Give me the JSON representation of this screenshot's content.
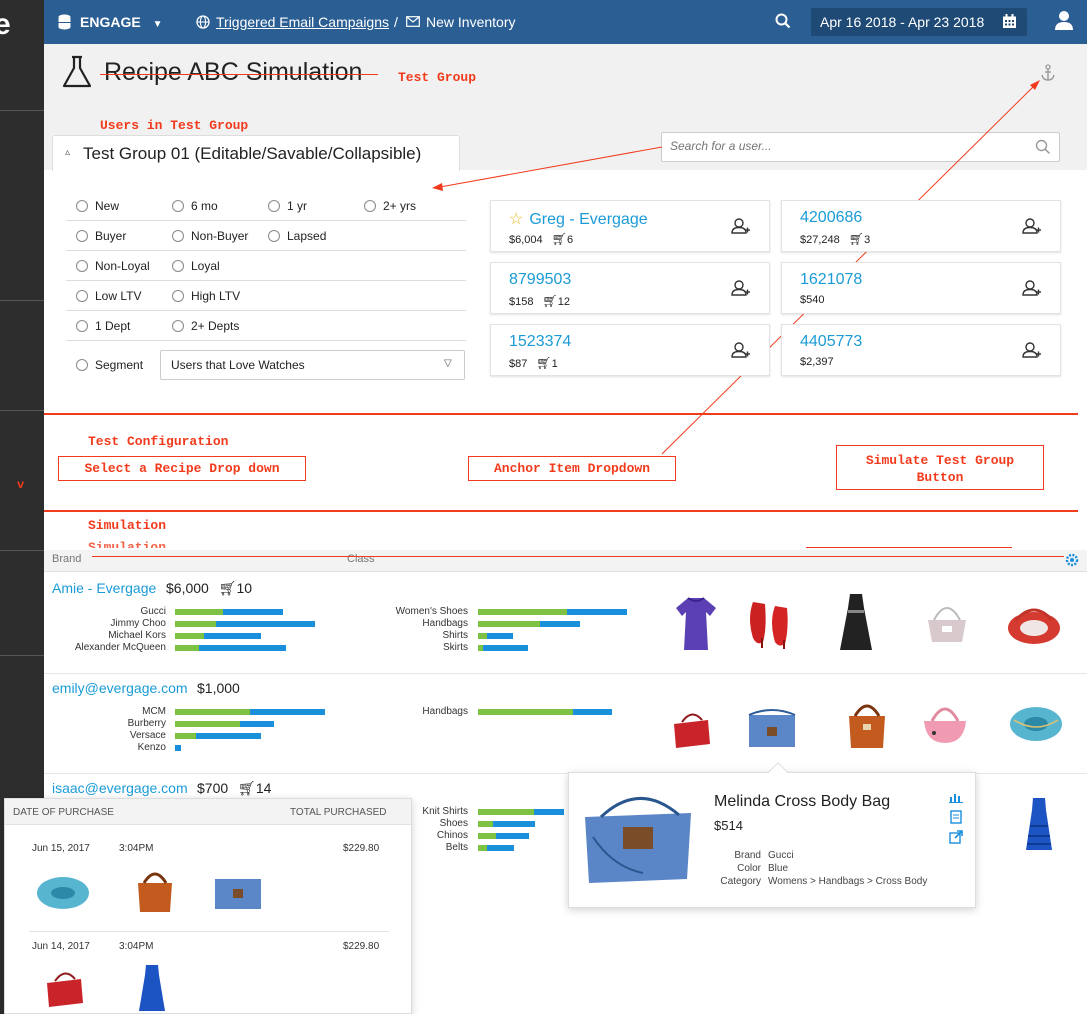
{
  "left_edge": {
    "logo_letter": "e",
    "marker": "v"
  },
  "topbar": {
    "product": "ENGAGE",
    "breadcrumb_link": "Triggered Email Campaigns",
    "breadcrumb_sep": "/",
    "breadcrumb_current": "New Inventory",
    "date_range": "Apr 16 2018 - Apr 23 2018",
    "color": "#2b5f94"
  },
  "page": {
    "title": "Recipe ABC Simulation"
  },
  "annotations": {
    "test_group": "Test Group",
    "users_in_test_group": "Users in Test Group",
    "test_configuration": "Test Configuration",
    "select_recipe": "Select a Recipe Drop down",
    "anchor_item": "Anchor Item Dropdown",
    "simulate_button": "Simulate Test Group Button",
    "simulation": "Simulation",
    "simulation_ghost": "Simulation"
  },
  "test_group": {
    "tab_label": "Test Group 01 (Editable/Savable/Collapsible)",
    "search_placeholder": "Search for a user...",
    "filters": [
      [
        "New",
        "6 mo",
        "1 yr",
        "2+ yrs"
      ],
      [
        "Buyer",
        "Non-Buyer",
        "Lapsed"
      ],
      [
        "Non-Loyal",
        "Loyal"
      ],
      [
        "Low LTV",
        "High LTV"
      ],
      [
        "1 Dept",
        "2+ Depts"
      ]
    ],
    "segment_label": "Segment",
    "segment_value": "Users that Love Watches",
    "users": [
      {
        "name": "Greg - Evergage",
        "amount": "$6,004",
        "count": "6",
        "starred": true
      },
      {
        "name": "4200686",
        "amount": "$27,248",
        "count": "3"
      },
      {
        "name": "8799503",
        "amount": "$158",
        "count": "12"
      },
      {
        "name": "1621078",
        "amount": "$540",
        "count": ""
      },
      {
        "name": "1523374",
        "amount": "$87",
        "count": "1"
      },
      {
        "name": "4405773",
        "amount": "$2,397",
        "count": ""
      }
    ]
  },
  "simulation": {
    "col_brand": "Brand",
    "col_class": "Class",
    "rows": [
      {
        "user": "Amie - Evergage",
        "amount": "$6,000",
        "count": "10",
        "brands": [
          {
            "name": "Gucci",
            "g": 0.32,
            "b": 0.4
          },
          {
            "name": "Jimmy Choo",
            "g": 0.27,
            "b": 0.66
          },
          {
            "name": "Michael Kors",
            "g": 0.19,
            "b": 0.38
          },
          {
            "name": "Alexander McQueen",
            "g": 0.16,
            "b": 0.58
          }
        ],
        "classes": [
          {
            "name": "Women's Shoes",
            "g": 0.59,
            "b": 0.4
          },
          {
            "name": "Handbags",
            "g": 0.41,
            "b": 0.27
          },
          {
            "name": "Shirts",
            "g": 0.06,
            "b": 0.17
          },
          {
            "name": "Skirts",
            "g": 0.03,
            "b": 0.3
          }
        ]
      },
      {
        "user": "emily@evergage.com",
        "amount": "$1,000",
        "count": "",
        "brands": [
          {
            "name": "MCM",
            "g": 0.5,
            "b": 0.5
          },
          {
            "name": "Burberry",
            "g": 0.43,
            "b": 0.23
          },
          {
            "name": "Versace",
            "g": 0.14,
            "b": 0.43
          },
          {
            "name": "Kenzo",
            "g": 0.0,
            "b": 0.04
          }
        ],
        "classes": [
          {
            "name": "Handbags",
            "g": 0.63,
            "b": 0.26
          }
        ]
      },
      {
        "user": "isaac@evergage.com",
        "amount": "$700",
        "count": "14",
        "brands": [],
        "classes": [
          {
            "name": "Knit Shirts",
            "g": 0.37,
            "b": 0.2
          },
          {
            "name": "Shoes",
            "g": 0.1,
            "b": 0.28
          },
          {
            "name": "Chinos",
            "g": 0.12,
            "b": 0.22
          },
          {
            "name": "Belts",
            "g": 0.06,
            "b": 0.18
          }
        ]
      }
    ]
  },
  "purchases": {
    "col_date": "DATE OF PURCHASE",
    "col_total": "TOTAL PURCHASED",
    "entries": [
      {
        "date": "Jun 15, 2017",
        "time": "3:04PM",
        "total": "$229.80"
      },
      {
        "date": "Jun 14, 2017",
        "time": "3:04PM",
        "total": "$229.80"
      }
    ]
  },
  "product_popup": {
    "name": "Melinda Cross Body Bag",
    "price": "$514",
    "brand_label": "Brand",
    "brand": "Gucci",
    "color_label": "Color",
    "color": "Blue",
    "category_label": "Category",
    "category": "Womens > Handbags > Cross Body"
  }
}
